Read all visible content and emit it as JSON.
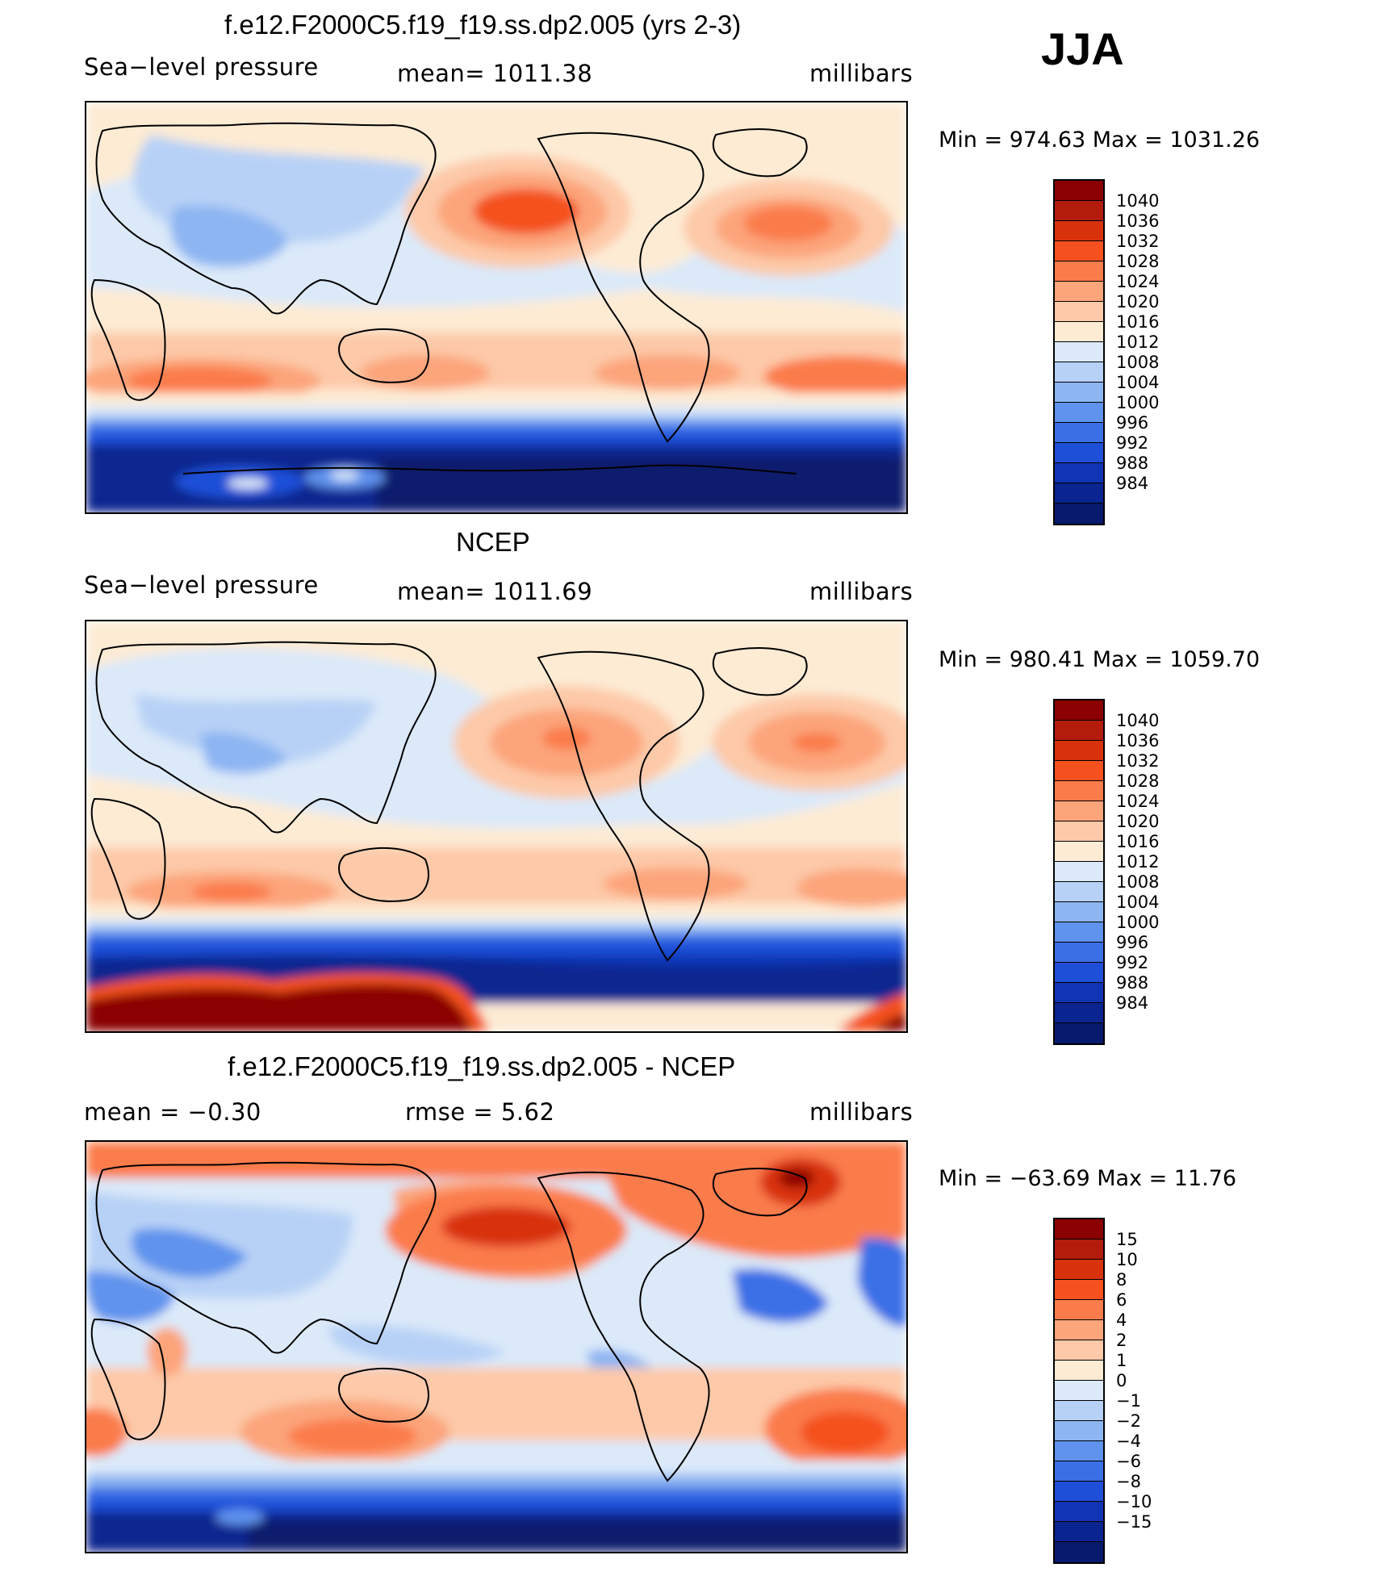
{
  "season": "JJA",
  "colors_pressure": [
    "#8b0000",
    "#b31b0a",
    "#d8320c",
    "#f4511e",
    "#fb7c4b",
    "#fca47a",
    "#fdc9a8",
    "#fdebd4",
    "#dbe9f9",
    "#b7d1f6",
    "#8db5f2",
    "#5f93ed",
    "#3a6fe6",
    "#1e4fd8",
    "#0f35b5",
    "#0a2590",
    "#081a6d"
  ],
  "colors_diff": [
    "#8b0000",
    "#b31b0a",
    "#d8320c",
    "#f4511e",
    "#fb7c4b",
    "#fca47a",
    "#fdc9a8",
    "#fdebd4",
    "#dbe9f9",
    "#b7d1f6",
    "#8db5f2",
    "#5f93ed",
    "#3a6fe6",
    "#1e4fd8",
    "#0f35b5",
    "#0a2590",
    "#081a6d"
  ],
  "panels": [
    {
      "title": "f.e12.F2000C5.f19_f19.ss.dp2.005 (yrs 2-3)",
      "left_label": "Sea−level pressure",
      "center_label": "mean=  1011.38",
      "right_label": "millibars",
      "minmax": "Min  =  974.63  Max  =  1031.26",
      "ticks": [
        "1040",
        "1036",
        "1032",
        "1028",
        "1024",
        "1020",
        "1016",
        "1012",
        "1008",
        "1004",
        "1000",
        "996",
        "992",
        "988",
        "984"
      ]
    },
    {
      "title": "NCEP",
      "left_label": "Sea−level pressure",
      "center_label": "mean=  1011.69",
      "right_label": "millibars",
      "minmax": "Min  =  980.41  Max  =  1059.70",
      "ticks": [
        "1040",
        "1036",
        "1032",
        "1028",
        "1024",
        "1020",
        "1016",
        "1012",
        "1008",
        "1004",
        "1000",
        "996",
        "992",
        "988",
        "984"
      ]
    },
    {
      "title": "f.e12.F2000C5.f19_f19.ss.dp2.005 - NCEP",
      "left_label": "mean  =    −0.30",
      "center_label": "rmse  =     5.62",
      "right_label": "millibars",
      "minmax": "Min  =  −63.69  Max  =    11.76",
      "ticks": [
        "15",
        "10",
        "8",
        "6",
        "4",
        "2",
        "1",
        "0",
        "−1",
        "−2",
        "−4",
        "−6",
        "−8",
        "−10",
        "−15"
      ]
    }
  ]
}
